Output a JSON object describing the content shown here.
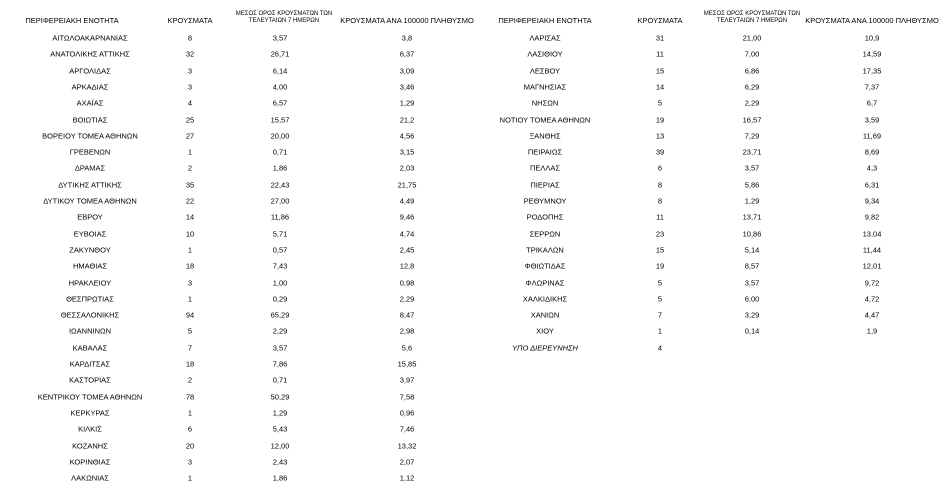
{
  "left": {
    "headers": [
      "ΠΕΡΙΦΕΡΕΙΑΚΗ ΕΝΟΤΗΤΑ",
      "ΚΡΟΥΣΜΑΤΑ",
      "ΜΕΣΟΣ ΟΡΟΣ ΚΡΟΥΣΜΑΤΩΝ ΤΩΝ ΤΕΛΕΥΤΑΙΩΝ 7 ΗΜΕΡΩΝ",
      "ΚΡΟΥΣΜΑΤΑ ΑΝΑ 100000 ΠΛΗΘΥΣΜΟ"
    ],
    "rows": [
      [
        "ΑΙΤΩΛΟΑΚΑΡΝΑΝΙΑΣ",
        "8",
        "3,57",
        "3,8"
      ],
      [
        "ΑΝΑΤΟΛΙΚΗΣ ΑΤΤΙΚΗΣ",
        "32",
        "26,71",
        "6,37"
      ],
      [
        "ΑΡΓΟΛΙΔΑΣ",
        "3",
        "6,14",
        "3,09"
      ],
      [
        "ΑΡΚΑΔΙΑΣ",
        "3",
        "4,00",
        "3,46"
      ],
      [
        "ΑΧΑΪΑΣ",
        "4",
        "6,57",
        "1,29"
      ],
      [
        "ΒΟΙΩΤΙΑΣ",
        "25",
        "15,57",
        "21,2"
      ],
      [
        "ΒΟΡΕΙΟΥ ΤΟΜΕΑ ΑΘΗΝΩΝ",
        "27",
        "20,00",
        "4,56"
      ],
      [
        "ΓΡΕΒΕΝΩΝ",
        "1",
        "0,71",
        "3,15"
      ],
      [
        "ΔΡΑΜΑΣ",
        "2",
        "1,86",
        "2,03"
      ],
      [
        "ΔΥΤΙΚΗΣ ΑΤΤΙΚΗΣ",
        "35",
        "22,43",
        "21,75"
      ],
      [
        "ΔΥΤΙΚΟΥ ΤΟΜΕΑ ΑΘΗΝΩΝ",
        "22",
        "27,00",
        "4,49"
      ],
      [
        "ΕΒΡΟΥ",
        "14",
        "11,86",
        "9,46"
      ],
      [
        "ΕΥΒΟΙΑΣ",
        "10",
        "5,71",
        "4,74"
      ],
      [
        "ΖΑΚΥΝΘΟΥ",
        "1",
        "0,57",
        "2,45"
      ],
      [
        "ΗΜΑΘΙΑΣ",
        "18",
        "7,43",
        "12,8"
      ],
      [
        "ΗΡΑΚΛΕΙΟΥ",
        "3",
        "1,00",
        "0,98"
      ],
      [
        "ΘΕΣΠΡΩΤΙΑΣ",
        "1",
        "0,29",
        "2,29"
      ],
      [
        "ΘΕΣΣΑΛΟΝΙΚΗΣ",
        "94",
        "65,29",
        "8,47"
      ],
      [
        "ΙΩΑΝΝΙΝΩΝ",
        "5",
        "2,29",
        "2,98"
      ],
      [
        "ΚΑΒΑΛΑΣ",
        "7",
        "3,57",
        "5,6"
      ],
      [
        "ΚΑΡΔΙΤΣΑΣ",
        "18",
        "7,86",
        "15,85"
      ],
      [
        "ΚΑΣΤΟΡΙΑΣ",
        "2",
        "0,71",
        "3,97"
      ],
      [
        "ΚΕΝΤΡΙΚΟΥ ΤΟΜΕΑ ΑΘΗΝΩΝ",
        "78",
        "50,29",
        "7,58"
      ],
      [
        "ΚΕΡΚΥΡΑΣ",
        "1",
        "1,29",
        "0,96"
      ],
      [
        "ΚΙΛΚΙΣ",
        "6",
        "5,43",
        "7,46"
      ],
      [
        "ΚΟΖΑΝΗΣ",
        "20",
        "12,00",
        "13,32"
      ],
      [
        "ΚΟΡΙΝΘΙΑΣ",
        "3",
        "2,43",
        "2,07"
      ],
      [
        "ΛΑΚΩΝΙΑΣ",
        "1",
        "1,86",
        "1,12"
      ]
    ]
  },
  "right": {
    "headers": [
      "ΠΕΡΙΦΕΡΕΙΑΚΗ ΕΝΟΤΗΤΑ",
      "ΚΡΟΥΣΜΑΤΑ",
      "ΜΕΣΟΣ ΟΡΟΣ ΚΡΟΥΣΜΑΤΩΝ ΤΩΝ ΤΕΛΕΥΤΑΙΩΝ 7 ΗΜΕΡΩΝ",
      "ΚΡΟΥΣΜΑΤΑ ΑΝΑ 100000 ΠΛΗΘΥΣΜΟ"
    ],
    "rows": [
      [
        "ΛΑΡΙΣΑΣ",
        "31",
        "21,00",
        "10,9"
      ],
      [
        "ΛΑΣΙΘΙΟΥ",
        "11",
        "7,00",
        "14,59"
      ],
      [
        "ΛΕΣΒΟΥ",
        "15",
        "6,86",
        "17,35"
      ],
      [
        "ΜΑΓΝΗΣΙΑΣ",
        "14",
        "6,29",
        "7,37"
      ],
      [
        "ΝΗΣΩΝ",
        "5",
        "2,29",
        "6,7"
      ],
      [
        "ΝΟΤΙΟΥ ΤΟΜΕΑ ΑΘΗΝΩΝ",
        "19",
        "16,57",
        "3,59"
      ],
      [
        "ΞΑΝΘΗΣ",
        "13",
        "7,29",
        "11,69"
      ],
      [
        "ΠΕΙΡΑΙΩΣ",
        "39",
        "23,71",
        "8,69"
      ],
      [
        "ΠΕΛΛΑΣ",
        "6",
        "3,57",
        "4,3"
      ],
      [
        "ΠΙΕΡΙΑΣ",
        "8",
        "5,86",
        "6,31"
      ],
      [
        "ΡΕΘΥΜΝΟΥ",
        "8",
        "1,29",
        "9,34"
      ],
      [
        "ΡΟΔΟΠΗΣ",
        "11",
        "13,71",
        "9,82"
      ],
      [
        "ΣΕΡΡΩΝ",
        "23",
        "10,86",
        "13,04"
      ],
      [
        "ΤΡΙΚΑΛΩΝ",
        "15",
        "5,14",
        "11,44"
      ],
      [
        "ΦΘΙΩΤΙΔΑΣ",
        "19",
        "8,57",
        "12,01"
      ],
      [
        "ΦΛΩΡΙΝΑΣ",
        "5",
        "3,57",
        "9,72"
      ],
      [
        "ΧΑΛΚΙΔΙΚΗΣ",
        "5",
        "6,00",
        "4,72"
      ],
      [
        "ΧΑΝΙΩΝ",
        "7",
        "3,29",
        "4,47"
      ],
      [
        "ΧΙΟΥ",
        "1",
        "0,14",
        "1,9"
      ],
      [
        "ΥΠΟ ΔΙΕΡΕΥΝΗΣΗ",
        "4"
      ]
    ]
  }
}
